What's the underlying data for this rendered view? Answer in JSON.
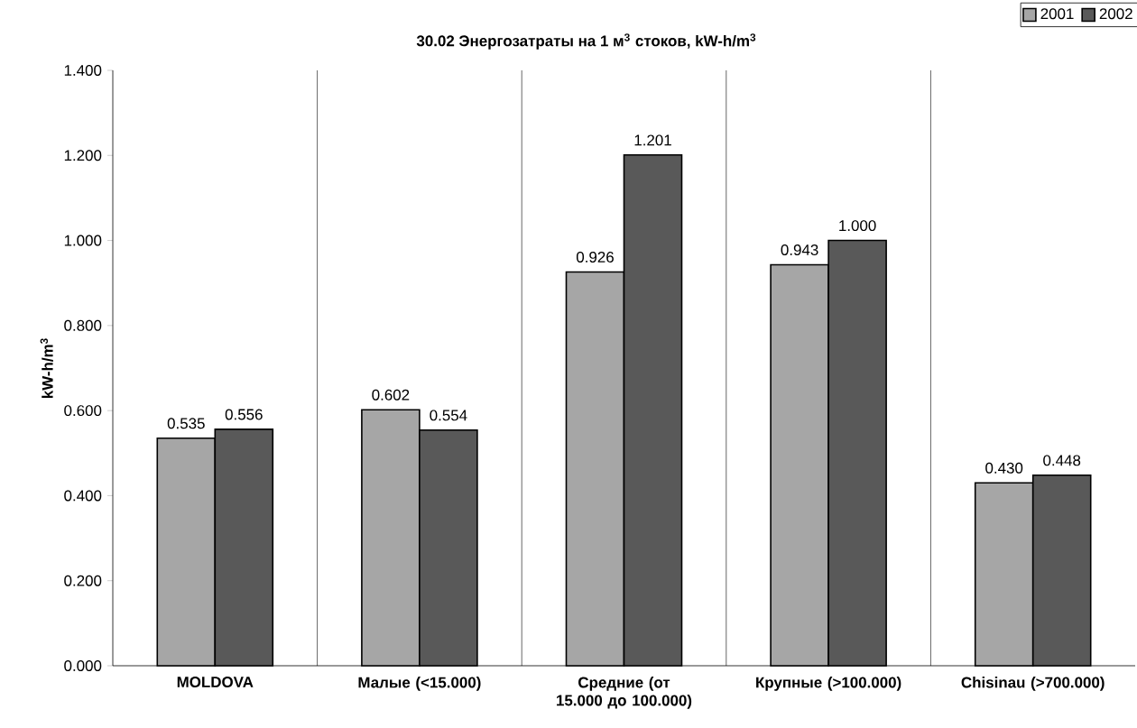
{
  "chart_data": {
    "type": "bar",
    "title": "30.02 Энергозатраты на 1 м$^{3}$ стоков, kW-h/m$^{3}$",
    "ylabel": "kW-h/m$^{3}$",
    "categories": [
      "MOLDOVA",
      "Малые (<15.000)",
      "Средние (от 15.000 до 100.000)",
      "Крупные (>100.000)",
      "Chisinau (>700.000)"
    ],
    "series": [
      {
        "name": "2001",
        "color": "#a6a6a6",
        "values": [
          0.535,
          0.602,
          0.926,
          0.943,
          0.43
        ],
        "value_labels": [
          "0.535",
          "0.602",
          "0.926",
          "0.943",
          "0.430"
        ]
      },
      {
        "name": "2002",
        "color": "#595959",
        "values": [
          0.556,
          0.554,
          1.201,
          1.0,
          0.448
        ],
        "value_labels": [
          "0.556",
          "0.554",
          "1.201",
          "1.000",
          "0.448"
        ]
      }
    ],
    "ylim": [
      0,
      1.4
    ],
    "yticks": [
      {
        "value": 0,
        "label": "0.000"
      },
      {
        "value": 0.2,
        "label": "0.200"
      },
      {
        "value": 0.4,
        "label": "0.400"
      },
      {
        "value": 0.6,
        "label": "0.600"
      },
      {
        "value": 0.8,
        "label": "0.800"
      },
      {
        "value": 1.0,
        "label": "1.000"
      },
      {
        "value": 1.2,
        "label": "1.200"
      },
      {
        "value": 1.4,
        "label": "1.400"
      }
    ],
    "grid": "x",
    "legend": "top right"
  }
}
